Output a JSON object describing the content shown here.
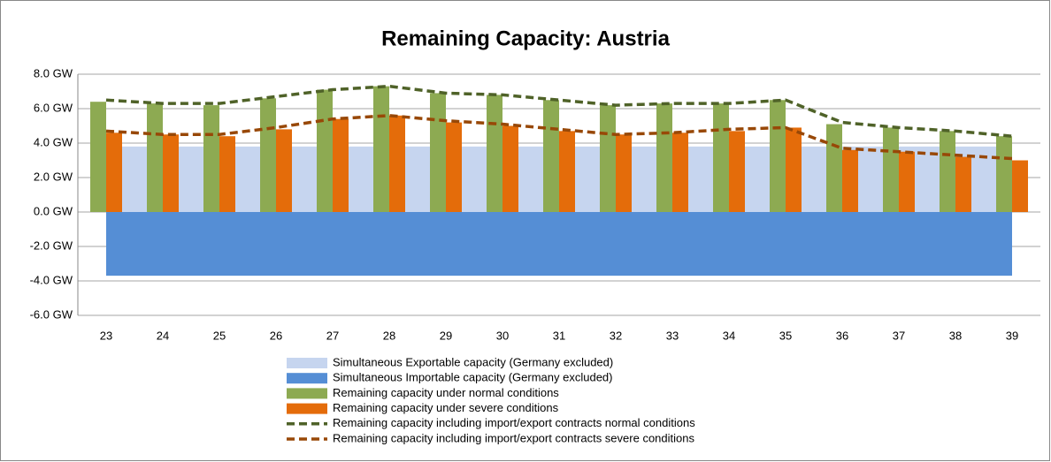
{
  "chart_data": {
    "type": "combo",
    "title": "Remaining Capacity: Austria",
    "categories": [
      "23",
      "24",
      "25",
      "26",
      "27",
      "28",
      "29",
      "30",
      "31",
      "32",
      "33",
      "34",
      "35",
      "36",
      "37",
      "38",
      "39"
    ],
    "ylim": [
      -6,
      8
    ],
    "yticks": [
      {
        "value": -6,
        "label": "-6.0 GW"
      },
      {
        "value": -4,
        "label": "-4.0 GW"
      },
      {
        "value": -2,
        "label": "-2.0 GW"
      },
      {
        "value": 0,
        "label": "0.0 GW"
      },
      {
        "value": 2,
        "label": "2.0 GW"
      },
      {
        "value": 4,
        "label": "4.0 GW"
      },
      {
        "value": 6,
        "label": "6.0 GW"
      },
      {
        "value": 8,
        "label": "8.0 GW"
      }
    ],
    "grid": true,
    "series": [
      {
        "name": "Simultaneous Exportable capacity (Germany excluded)",
        "kind": "area",
        "color": "#c6d5ef",
        "values": [
          3.8,
          3.8,
          3.8,
          3.8,
          3.8,
          3.8,
          3.8,
          3.8,
          3.8,
          3.8,
          3.8,
          3.8,
          3.8,
          3.8,
          3.8,
          3.8,
          3.8
        ]
      },
      {
        "name": "Simultaneous Importable capacity (Germany excluded)",
        "kind": "area",
        "color": "#558ed5",
        "values": [
          -3.7,
          -3.7,
          -3.7,
          -3.7,
          -3.7,
          -3.7,
          -3.7,
          -3.7,
          -3.7,
          -3.7,
          -3.7,
          -3.7,
          -3.7,
          -3.7,
          -3.7,
          -3.7,
          -3.7
        ]
      },
      {
        "name": "Remaining capacity under normal conditions",
        "kind": "bar",
        "color": "#8daa52",
        "values": [
          6.4,
          6.3,
          6.2,
          6.6,
          7.1,
          7.3,
          6.9,
          6.8,
          6.5,
          6.2,
          6.3,
          6.3,
          6.5,
          5.1,
          4.9,
          4.7,
          4.4
        ]
      },
      {
        "name": "Remaining capacity under severe conditions",
        "kind": "bar",
        "color": "#e46c0a",
        "values": [
          4.6,
          4.5,
          4.4,
          4.8,
          5.4,
          5.6,
          5.2,
          5.0,
          4.7,
          4.5,
          4.6,
          4.7,
          4.9,
          3.6,
          3.5,
          3.2,
          3.0
        ]
      },
      {
        "name": "Remaining capacity including import/export contracts normal conditions",
        "kind": "line",
        "color": "#4f6228",
        "values": [
          6.5,
          6.3,
          6.3,
          6.7,
          7.1,
          7.3,
          6.9,
          6.8,
          6.5,
          6.2,
          6.3,
          6.3,
          6.5,
          5.2,
          4.9,
          4.7,
          4.4
        ]
      },
      {
        "name": "Remaining capacity including import/export contracts severe conditions",
        "kind": "line",
        "color": "#984807",
        "values": [
          4.7,
          4.5,
          4.5,
          4.9,
          5.4,
          5.6,
          5.3,
          5.1,
          4.8,
          4.5,
          4.6,
          4.8,
          4.9,
          3.7,
          3.5,
          3.3,
          3.1
        ]
      }
    ]
  }
}
